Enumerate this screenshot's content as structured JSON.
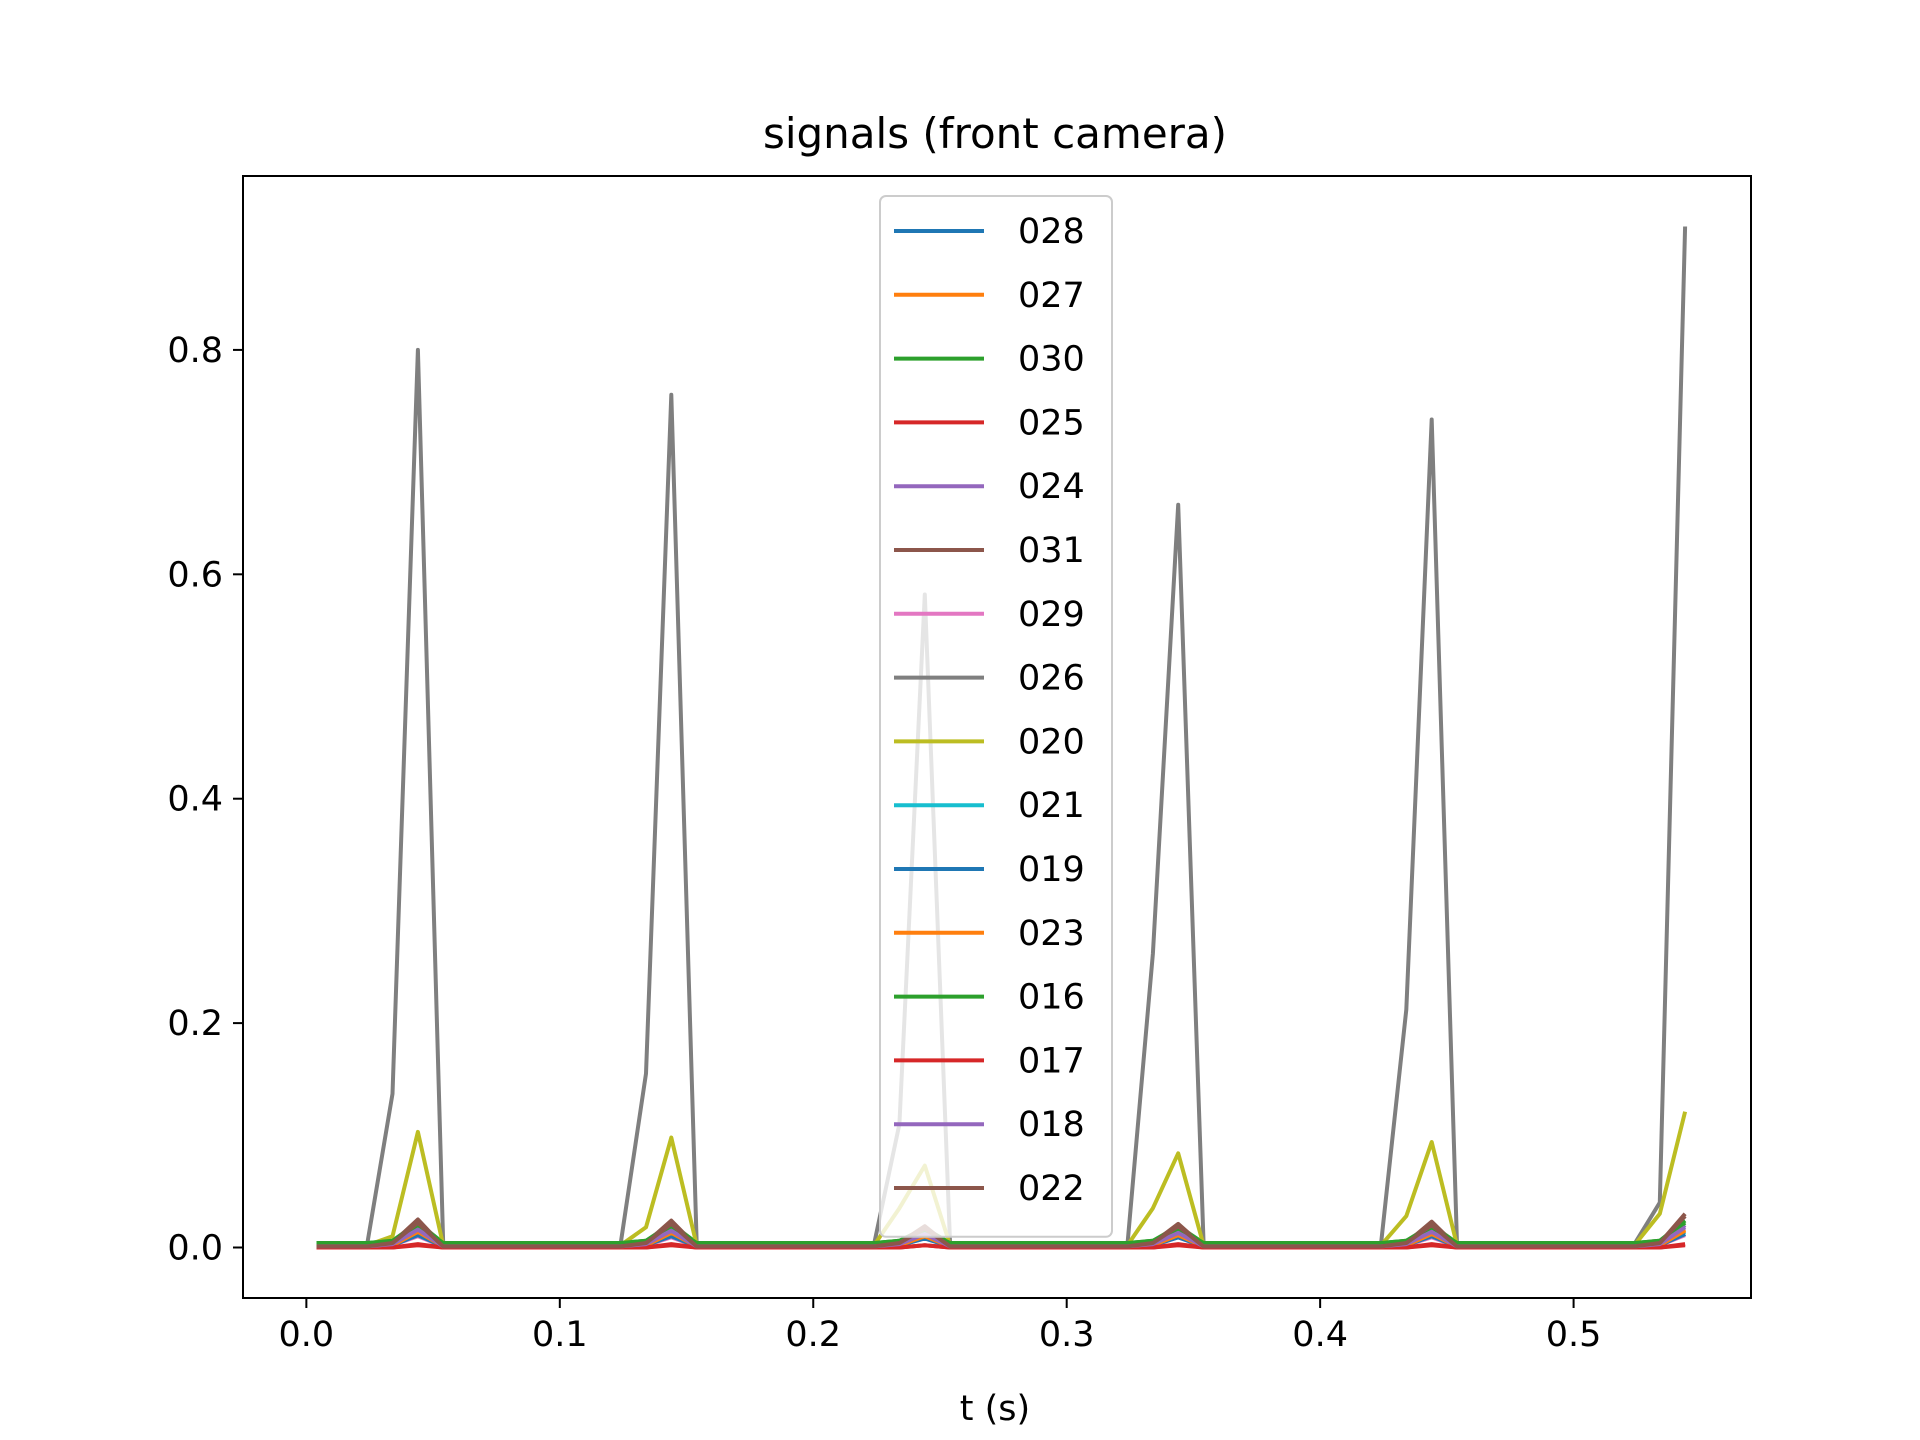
{
  "chart_data": {
    "type": "line",
    "title": "signals (front camera)",
    "xlabel": "t (s)",
    "ylabel": "",
    "xlim": [
      -0.025,
      0.57
    ],
    "ylim": [
      -0.045,
      0.955
    ],
    "xticks": [
      0.0,
      0.1,
      0.2,
      0.3,
      0.4,
      0.5
    ],
    "xtick_labels": [
      "0.0",
      "0.1",
      "0.2",
      "0.3",
      "0.4",
      "0.5"
    ],
    "yticks": [
      0.0,
      0.2,
      0.4,
      0.6,
      0.8
    ],
    "ytick_labels": [
      "0.0",
      "0.2",
      "0.4",
      "0.6",
      "0.8"
    ],
    "grid": false,
    "legend": {
      "placement": "upper center"
    },
    "x": [
      0.004,
      0.014,
      0.024,
      0.034,
      0.044,
      0.054,
      0.064,
      0.074,
      0.084,
      0.094,
      0.104,
      0.114,
      0.124,
      0.134,
      0.144,
      0.154,
      0.164,
      0.174,
      0.184,
      0.194,
      0.204,
      0.214,
      0.224,
      0.234,
      0.244,
      0.254,
      0.264,
      0.274,
      0.284,
      0.294,
      0.304,
      0.314,
      0.324,
      0.334,
      0.344,
      0.354,
      0.364,
      0.374,
      0.384,
      0.394,
      0.404,
      0.414,
      0.424,
      0.434,
      0.444,
      0.454,
      0.464,
      0.474,
      0.484,
      0.494,
      0.504,
      0.514,
      0.524,
      0.534,
      0.544
    ],
    "series": [
      {
        "name": "028",
        "color": "#1f77b4",
        "values": [
          0.001,
          0.001,
          0.001,
          0.002,
          0.012,
          0.001,
          0.001,
          0.001,
          0.001,
          0.001,
          0.001,
          0.001,
          0.001,
          0.002,
          0.011,
          0.001,
          0.001,
          0.001,
          0.001,
          0.001,
          0.001,
          0.001,
          0.001,
          0.002,
          0.009,
          0.001,
          0.001,
          0.001,
          0.001,
          0.001,
          0.001,
          0.001,
          0.001,
          0.002,
          0.01,
          0.001,
          0.001,
          0.001,
          0.001,
          0.001,
          0.001,
          0.001,
          0.001,
          0.002,
          0.011,
          0.001,
          0.001,
          0.001,
          0.001,
          0.001,
          0.001,
          0.001,
          0.001,
          0.002,
          0.012
        ]
      },
      {
        "name": "027",
        "color": "#ff7f0e",
        "values": [
          0.001,
          0.001,
          0.001,
          0.002,
          0.015,
          0.001,
          0.001,
          0.001,
          0.001,
          0.001,
          0.001,
          0.001,
          0.001,
          0.002,
          0.014,
          0.001,
          0.001,
          0.001,
          0.001,
          0.001,
          0.001,
          0.001,
          0.001,
          0.002,
          0.011,
          0.001,
          0.001,
          0.001,
          0.001,
          0.001,
          0.001,
          0.001,
          0.001,
          0.002,
          0.012,
          0.001,
          0.001,
          0.001,
          0.001,
          0.001,
          0.001,
          0.001,
          0.001,
          0.002,
          0.013,
          0.001,
          0.001,
          0.001,
          0.001,
          0.001,
          0.001,
          0.001,
          0.001,
          0.002,
          0.016
        ]
      },
      {
        "name": "030",
        "color": "#2ca02c",
        "values": [
          0.004,
          0.004,
          0.004,
          0.006,
          0.022,
          0.004,
          0.004,
          0.004,
          0.004,
          0.004,
          0.004,
          0.004,
          0.004,
          0.006,
          0.021,
          0.004,
          0.004,
          0.004,
          0.004,
          0.004,
          0.004,
          0.004,
          0.004,
          0.006,
          0.017,
          0.004,
          0.004,
          0.004,
          0.004,
          0.004,
          0.004,
          0.004,
          0.004,
          0.006,
          0.019,
          0.004,
          0.004,
          0.004,
          0.004,
          0.004,
          0.004,
          0.004,
          0.004,
          0.006,
          0.02,
          0.004,
          0.004,
          0.004,
          0.004,
          0.004,
          0.004,
          0.004,
          0.004,
          0.006,
          0.024
        ]
      },
      {
        "name": "025",
        "color": "#d62728",
        "values": [
          0.0,
          0.0,
          0.0,
          0.0,
          0.002,
          0.0,
          0.0,
          0.0,
          0.0,
          0.0,
          0.0,
          0.0,
          0.0,
          0.0,
          0.002,
          0.0,
          0.0,
          0.0,
          0.0,
          0.0,
          0.0,
          0.0,
          0.0,
          0.0,
          0.002,
          0.0,
          0.0,
          0.0,
          0.0,
          0.0,
          0.0,
          0.0,
          0.0,
          0.0,
          0.002,
          0.0,
          0.0,
          0.0,
          0.0,
          0.0,
          0.0,
          0.0,
          0.0,
          0.0,
          0.002,
          0.0,
          0.0,
          0.0,
          0.0,
          0.0,
          0.0,
          0.0,
          0.0,
          0.0,
          0.002
        ]
      },
      {
        "name": "024",
        "color": "#9467bd",
        "values": [
          0.001,
          0.001,
          0.001,
          0.003,
          0.018,
          0.001,
          0.001,
          0.001,
          0.001,
          0.001,
          0.001,
          0.001,
          0.001,
          0.003,
          0.017,
          0.001,
          0.001,
          0.001,
          0.001,
          0.001,
          0.001,
          0.001,
          0.001,
          0.003,
          0.013,
          0.001,
          0.001,
          0.001,
          0.001,
          0.001,
          0.001,
          0.001,
          0.001,
          0.003,
          0.015,
          0.001,
          0.001,
          0.001,
          0.001,
          0.001,
          0.001,
          0.001,
          0.001,
          0.003,
          0.016,
          0.001,
          0.001,
          0.001,
          0.001,
          0.001,
          0.001,
          0.001,
          0.001,
          0.003,
          0.02
        ]
      },
      {
        "name": "031",
        "color": "#8c564b",
        "values": [
          0.001,
          0.001,
          0.001,
          0.004,
          0.025,
          0.001,
          0.001,
          0.001,
          0.001,
          0.001,
          0.001,
          0.001,
          0.001,
          0.004,
          0.024,
          0.001,
          0.001,
          0.001,
          0.001,
          0.001,
          0.001,
          0.001,
          0.001,
          0.004,
          0.019,
          0.001,
          0.001,
          0.001,
          0.001,
          0.001,
          0.001,
          0.001,
          0.001,
          0.004,
          0.021,
          0.001,
          0.001,
          0.001,
          0.001,
          0.001,
          0.001,
          0.001,
          0.001,
          0.004,
          0.023,
          0.001,
          0.001,
          0.001,
          0.001,
          0.001,
          0.001,
          0.001,
          0.001,
          0.004,
          0.03
        ]
      },
      {
        "name": "029",
        "color": "#e377c2",
        "values": [
          0.001,
          0.001,
          0.001,
          0.002,
          0.01,
          0.001,
          0.001,
          0.001,
          0.001,
          0.001,
          0.001,
          0.001,
          0.001,
          0.002,
          0.009,
          0.001,
          0.001,
          0.001,
          0.001,
          0.001,
          0.001,
          0.001,
          0.001,
          0.002,
          0.008,
          0.001,
          0.001,
          0.001,
          0.001,
          0.001,
          0.001,
          0.001,
          0.001,
          0.002,
          0.009,
          0.001,
          0.001,
          0.001,
          0.001,
          0.001,
          0.001,
          0.001,
          0.001,
          0.002,
          0.009,
          0.001,
          0.001,
          0.001,
          0.001,
          0.001,
          0.001,
          0.001,
          0.001,
          0.002,
          0.011
        ]
      },
      {
        "name": "026",
        "color": "#7f7f7f",
        "values": [
          0.003,
          0.003,
          0.003,
          0.137,
          0.8,
          0.003,
          0.003,
          0.003,
          0.003,
          0.003,
          0.003,
          0.003,
          0.003,
          0.155,
          0.76,
          0.003,
          0.003,
          0.003,
          0.003,
          0.003,
          0.003,
          0.003,
          0.003,
          0.11,
          0.582,
          0.003,
          0.003,
          0.003,
          0.003,
          0.003,
          0.003,
          0.003,
          0.003,
          0.262,
          0.662,
          0.003,
          0.003,
          0.003,
          0.003,
          0.003,
          0.003,
          0.003,
          0.003,
          0.212,
          0.738,
          0.003,
          0.003,
          0.003,
          0.003,
          0.003,
          0.003,
          0.003,
          0.003,
          0.04,
          0.91
        ]
      },
      {
        "name": "020",
        "color": "#bcbd22",
        "values": [
          0.002,
          0.002,
          0.002,
          0.01,
          0.103,
          0.002,
          0.002,
          0.002,
          0.002,
          0.002,
          0.002,
          0.002,
          0.002,
          0.018,
          0.098,
          0.002,
          0.002,
          0.002,
          0.002,
          0.002,
          0.002,
          0.002,
          0.002,
          0.035,
          0.073,
          0.002,
          0.002,
          0.002,
          0.002,
          0.002,
          0.002,
          0.002,
          0.002,
          0.035,
          0.084,
          0.002,
          0.002,
          0.002,
          0.002,
          0.002,
          0.002,
          0.002,
          0.002,
          0.028,
          0.094,
          0.002,
          0.002,
          0.002,
          0.002,
          0.002,
          0.002,
          0.002,
          0.002,
          0.03,
          0.121
        ]
      },
      {
        "name": "021",
        "color": "#17becf",
        "values": [
          0.001,
          0.001,
          0.001,
          0.002,
          0.013,
          0.001,
          0.001,
          0.001,
          0.001,
          0.001,
          0.001,
          0.001,
          0.001,
          0.002,
          0.012,
          0.001,
          0.001,
          0.001,
          0.001,
          0.001,
          0.001,
          0.001,
          0.001,
          0.002,
          0.01,
          0.001,
          0.001,
          0.001,
          0.001,
          0.001,
          0.001,
          0.001,
          0.001,
          0.002,
          0.011,
          0.001,
          0.001,
          0.001,
          0.001,
          0.001,
          0.001,
          0.001,
          0.001,
          0.002,
          0.012,
          0.001,
          0.001,
          0.001,
          0.001,
          0.001,
          0.001,
          0.001,
          0.001,
          0.002,
          0.014
        ]
      },
      {
        "name": "019",
        "color": "#1f77b4",
        "values": [
          0.001,
          0.001,
          0.001,
          0.002,
          0.011,
          0.001,
          0.001,
          0.001,
          0.001,
          0.001,
          0.001,
          0.001,
          0.001,
          0.002,
          0.01,
          0.001,
          0.001,
          0.001,
          0.001,
          0.001,
          0.001,
          0.001,
          0.001,
          0.002,
          0.008,
          0.001,
          0.001,
          0.001,
          0.001,
          0.001,
          0.001,
          0.001,
          0.001,
          0.002,
          0.009,
          0.001,
          0.001,
          0.001,
          0.001,
          0.001,
          0.001,
          0.001,
          0.001,
          0.002,
          0.01,
          0.001,
          0.001,
          0.001,
          0.001,
          0.001,
          0.001,
          0.001,
          0.001,
          0.002,
          0.012
        ]
      },
      {
        "name": "023",
        "color": "#ff7f0e",
        "values": [
          0.001,
          0.001,
          0.001,
          0.002,
          0.014,
          0.001,
          0.001,
          0.001,
          0.001,
          0.001,
          0.001,
          0.001,
          0.001,
          0.002,
          0.013,
          0.001,
          0.001,
          0.001,
          0.001,
          0.001,
          0.001,
          0.001,
          0.001,
          0.002,
          0.01,
          0.001,
          0.001,
          0.001,
          0.001,
          0.001,
          0.001,
          0.001,
          0.001,
          0.002,
          0.011,
          0.001,
          0.001,
          0.001,
          0.001,
          0.001,
          0.001,
          0.001,
          0.001,
          0.002,
          0.012,
          0.001,
          0.001,
          0.001,
          0.001,
          0.001,
          0.001,
          0.001,
          0.001,
          0.002,
          0.015
        ]
      },
      {
        "name": "016",
        "color": "#2ca02c",
        "values": [
          0.004,
          0.004,
          0.004,
          0.006,
          0.02,
          0.004,
          0.004,
          0.004,
          0.004,
          0.004,
          0.004,
          0.004,
          0.004,
          0.006,
          0.019,
          0.004,
          0.004,
          0.004,
          0.004,
          0.004,
          0.004,
          0.004,
          0.004,
          0.006,
          0.015,
          0.004,
          0.004,
          0.004,
          0.004,
          0.004,
          0.004,
          0.004,
          0.004,
          0.006,
          0.017,
          0.004,
          0.004,
          0.004,
          0.004,
          0.004,
          0.004,
          0.004,
          0.004,
          0.006,
          0.018,
          0.004,
          0.004,
          0.004,
          0.004,
          0.004,
          0.004,
          0.004,
          0.004,
          0.006,
          0.022
        ]
      },
      {
        "name": "017",
        "color": "#d62728",
        "values": [
          0.0,
          0.0,
          0.0,
          0.0,
          0.003,
          0.0,
          0.0,
          0.0,
          0.0,
          0.0,
          0.0,
          0.0,
          0.0,
          0.0,
          0.003,
          0.0,
          0.0,
          0.0,
          0.0,
          0.0,
          0.0,
          0.0,
          0.0,
          0.0,
          0.002,
          0.0,
          0.0,
          0.0,
          0.0,
          0.0,
          0.0,
          0.0,
          0.0,
          0.0,
          0.003,
          0.0,
          0.0,
          0.0,
          0.0,
          0.0,
          0.0,
          0.0,
          0.0,
          0.0,
          0.003,
          0.0,
          0.0,
          0.0,
          0.0,
          0.0,
          0.0,
          0.0,
          0.0,
          0.0,
          0.003
        ]
      },
      {
        "name": "018",
        "color": "#9467bd",
        "values": [
          0.001,
          0.001,
          0.001,
          0.003,
          0.016,
          0.001,
          0.001,
          0.001,
          0.001,
          0.001,
          0.001,
          0.001,
          0.001,
          0.003,
          0.015,
          0.001,
          0.001,
          0.001,
          0.001,
          0.001,
          0.001,
          0.001,
          0.001,
          0.003,
          0.012,
          0.001,
          0.001,
          0.001,
          0.001,
          0.001,
          0.001,
          0.001,
          0.001,
          0.003,
          0.013,
          0.001,
          0.001,
          0.001,
          0.001,
          0.001,
          0.001,
          0.001,
          0.001,
          0.003,
          0.014,
          0.001,
          0.001,
          0.001,
          0.001,
          0.001,
          0.001,
          0.001,
          0.001,
          0.003,
          0.018
        ]
      },
      {
        "name": "022",
        "color": "#8c564b",
        "values": [
          0.001,
          0.001,
          0.001,
          0.004,
          0.022,
          0.001,
          0.001,
          0.001,
          0.001,
          0.001,
          0.001,
          0.001,
          0.001,
          0.004,
          0.021,
          0.001,
          0.001,
          0.001,
          0.001,
          0.001,
          0.001,
          0.001,
          0.001,
          0.004,
          0.017,
          0.001,
          0.001,
          0.001,
          0.001,
          0.001,
          0.001,
          0.001,
          0.001,
          0.004,
          0.019,
          0.001,
          0.001,
          0.001,
          0.001,
          0.001,
          0.001,
          0.001,
          0.001,
          0.004,
          0.02,
          0.001,
          0.001,
          0.001,
          0.001,
          0.001,
          0.001,
          0.001,
          0.001,
          0.004,
          0.028
        ]
      }
    ]
  }
}
